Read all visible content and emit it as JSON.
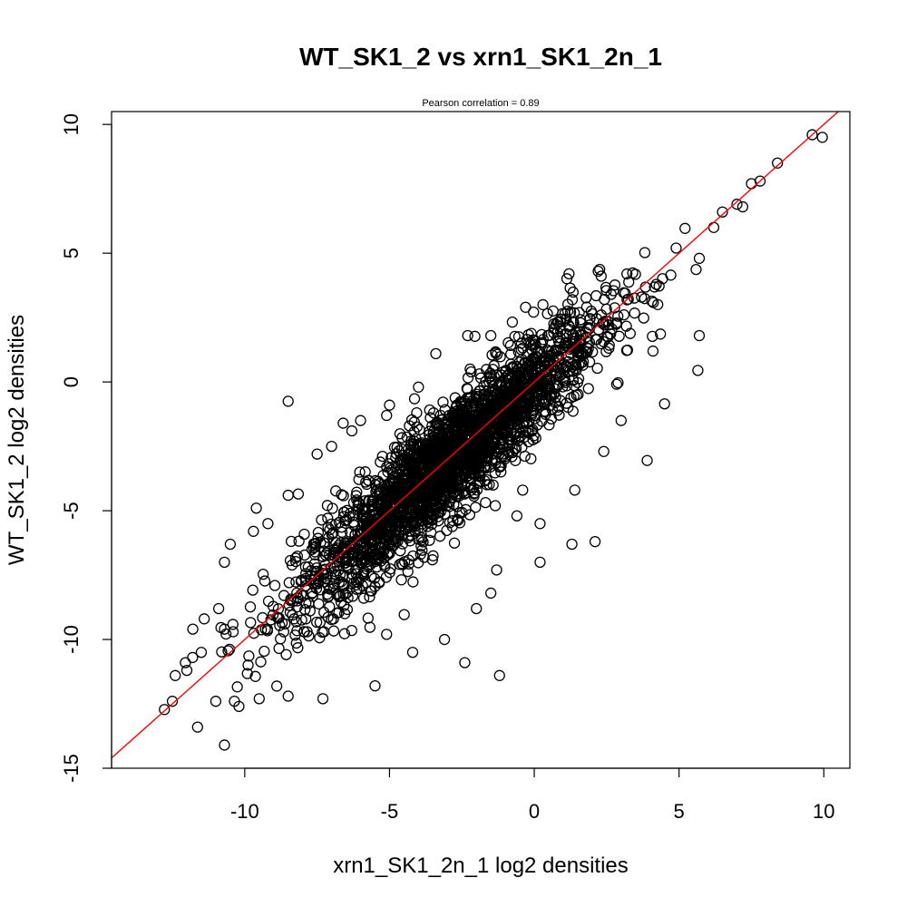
{
  "chart_data": {
    "type": "scatter",
    "title": "WT_SK1_2 vs xrn1_SK1_2n_1",
    "subtitle": "Pearson correlation =  0.89",
    "xlabel": "xrn1_SK1_2n_1 log2 densities",
    "ylabel": "WT_SK1_2 log2 densities",
    "xlim": [
      -14.6,
      10.9
    ],
    "ylim": [
      -15,
      10.5
    ],
    "x_ticks": [
      -10,
      -5,
      0,
      5,
      10
    ],
    "y_ticks": [
      -15,
      -10,
      -5,
      0,
      5,
      10
    ],
    "x_tick_labels": [
      "-10",
      "-5",
      "0",
      "5",
      "10"
    ],
    "y_tick_labels": [
      "-15",
      "-10",
      "-5",
      "0",
      "5",
      "10"
    ],
    "correlation": 0.89,
    "reference_line": {
      "slope": 1,
      "intercept": 0,
      "color": "#ff0000"
    },
    "point_style": {
      "shape": "open-circle",
      "color": "#000000"
    },
    "bulk_cloud": {
      "x_center": -3.0,
      "y_center": -3.8,
      "x_sd": 2.6,
      "residual_sd": 1.1,
      "count": 2600
    },
    "series": [
      {
        "points": [
          [
            9.6,
            9.6
          ],
          [
            9.95,
            9.5
          ],
          [
            8.4,
            8.5
          ],
          [
            7.8,
            7.8
          ],
          [
            7.5,
            7.7
          ],
          [
            7.2,
            6.8
          ],
          [
            7.0,
            6.9
          ],
          [
            6.5,
            6.6
          ],
          [
            6.2,
            6.0
          ],
          [
            5.7,
            4.8
          ],
          [
            5.7,
            1.8
          ],
          [
            5.65,
            0.45
          ],
          [
            4.5,
            -0.85
          ],
          [
            4.9,
            5.2
          ],
          [
            3.9,
            -3.05
          ],
          [
            1.2,
            4.2
          ],
          [
            0.3,
            3.0
          ],
          [
            -0.3,
            2.9
          ],
          [
            -2.3,
            1.8
          ],
          [
            -1.5,
            1.8
          ],
          [
            -3.4,
            1.1
          ],
          [
            -4.0,
            -0.2
          ],
          [
            -8.5,
            -0.75
          ],
          [
            -5.0,
            -0.9
          ],
          [
            -5.1,
            -1.3
          ],
          [
            -6.0,
            -1.5
          ],
          [
            -6.6,
            -1.6
          ],
          [
            -0.6,
            -5.2
          ],
          [
            0.2,
            -5.5
          ],
          [
            1.3,
            -6.3
          ],
          [
            2.1,
            -6.2
          ],
          [
            0.2,
            -7.0
          ],
          [
            -1.3,
            -7.3
          ],
          [
            -2.4,
            -10.9
          ],
          [
            -1.2,
            -11.4
          ],
          [
            -5.5,
            -11.8
          ],
          [
            -7.3,
            -12.3
          ],
          [
            -8.5,
            -12.2
          ],
          [
            -9.5,
            -12.3
          ],
          [
            -10.2,
            -12.6
          ],
          [
            -11.0,
            -12.4
          ],
          [
            -10.7,
            -14.1
          ],
          [
            -12.5,
            -12.4
          ],
          [
            -12.4,
            -11.4
          ],
          [
            -12.0,
            -11.2
          ],
          [
            -11.8,
            -10.7
          ],
          [
            -11.5,
            -10.5
          ],
          [
            -11.4,
            -9.2
          ],
          [
            -10.7,
            -9.6
          ],
          [
            -10.4,
            -9.7
          ],
          [
            -10.9,
            -8.8
          ],
          [
            -10.7,
            -7.0
          ],
          [
            -10.5,
            -6.3
          ],
          [
            -9.6,
            -4.9
          ],
          [
            -9.2,
            -5.5
          ],
          [
            -8.5,
            -4.4
          ],
          [
            -7.5,
            -2.8
          ],
          [
            -7.0,
            -2.5
          ],
          [
            -6.3,
            -1.9
          ],
          [
            -9.7,
            -5.8
          ],
          [
            -5.1,
            -9.8
          ],
          [
            -4.2,
            -10.5
          ],
          [
            -3.1,
            -10.0
          ],
          [
            -2.0,
            -8.8
          ],
          [
            -1.5,
            -8.2
          ],
          [
            -0.4,
            -4.2
          ],
          [
            1.4,
            -4.2
          ],
          [
            2.4,
            -2.7
          ],
          [
            3.0,
            -1.5
          ],
          [
            4.1,
            1.2
          ]
        ]
      }
    ]
  }
}
